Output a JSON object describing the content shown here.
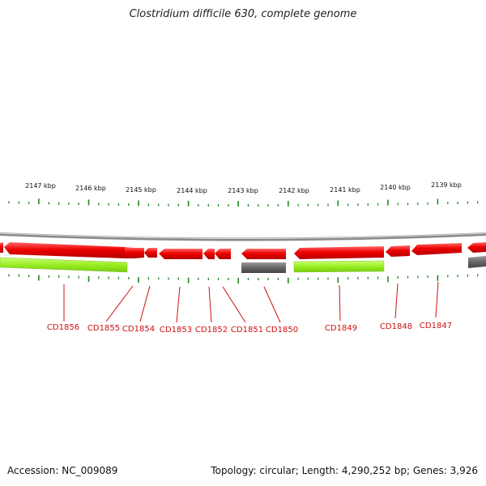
{
  "title": "Clostridium difficile 630, complete genome",
  "accession_text": "Accession: NC_009089",
  "summary_text": "Topology: circular; Length: 4,290,252 bp; Genes: 3,926",
  "colors": {
    "forward_gene": "#ee0000",
    "highlight_gene": "#99ee22",
    "other_feature": "#666666",
    "backbone": "#8a8a8a",
    "tick": "#228822",
    "label": "#cc1111"
  },
  "kbp_labels": [
    "2147 kbp",
    "2146 kbp",
    "2145 kbp",
    "2144 kbp",
    "2143 kbp",
    "2142 kbp",
    "2141 kbp",
    "2140 kbp",
    "2139 kbp"
  ],
  "gene_labels": [
    "CD1856",
    "CD1855",
    "CD1854",
    "CD1853",
    "CD1852",
    "CD1851",
    "CD1850",
    "CD1849",
    "CD1848",
    "CD1847"
  ]
}
